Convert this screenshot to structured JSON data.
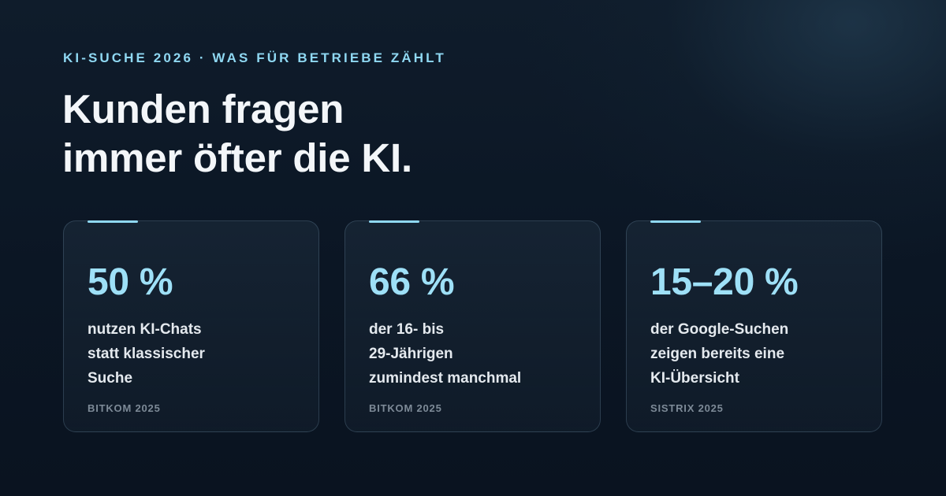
{
  "eyebrow": "KI-SUCHE 2026 · WAS FÜR BETRIEBE ZÄHLT",
  "headline": {
    "line1": "Kunden fragen",
    "line2": "immer öfter die KI."
  },
  "cards": [
    {
      "stat": "50 %",
      "lines": [
        "nutzen KI-Chats",
        "statt klassischer",
        "Suche"
      ],
      "source": "BITKOM 2025"
    },
    {
      "stat": "66 %",
      "lines": [
        "der 16- bis",
        "29-Jährigen",
        "zumindest manchmal"
      ],
      "source": "BITKOM 2025"
    },
    {
      "stat": "15–20 %",
      "lines": [
        "der Google-Suchen",
        "zeigen bereits eine",
        "KI-Übersicht"
      ],
      "source": "SISTRIX 2025"
    }
  ],
  "colors": {
    "accent": "#8fd8f2",
    "stat": "#9ee0f7",
    "background": "#0b1624"
  }
}
